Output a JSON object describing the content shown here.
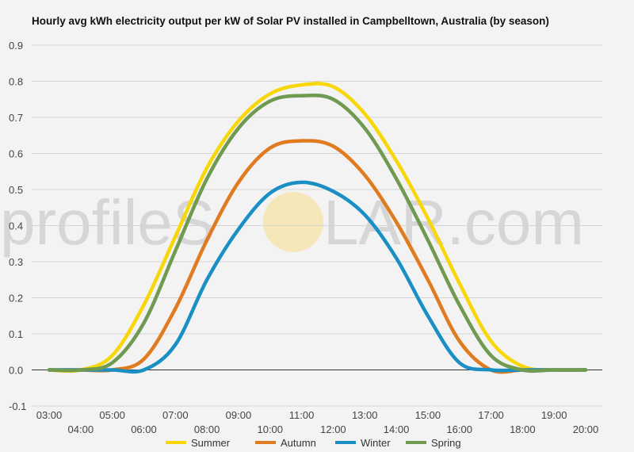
{
  "title": "Hourly avg kWh electricity output per kW of Solar PV installed in Campbelltown, Australia (by season)",
  "watermark": {
    "text_left": "profileS",
    "text_right": "LAR.com",
    "color": "#d6d6d6",
    "sun_color": "#f5e3a8"
  },
  "chart_data": {
    "type": "line",
    "title": "Hourly avg kWh electricity output per kW of Solar PV installed in Campbelltown, Australia (by season)",
    "xlabel": "",
    "ylabel": "",
    "x": [
      "03:00",
      "04:00",
      "05:00",
      "06:00",
      "07:00",
      "08:00",
      "09:00",
      "10:00",
      "11:00",
      "12:00",
      "13:00",
      "14:00",
      "15:00",
      "16:00",
      "17:00",
      "18:00",
      "19:00",
      "20:00"
    ],
    "x_tick_labels_upper": [
      "03:00",
      "05:00",
      "07:00",
      "09:00",
      "11:00",
      "13:00",
      "15:00",
      "17:00",
      "19:00"
    ],
    "x_tick_labels_lower": [
      "04:00",
      "06:00",
      "08:00",
      "10:00",
      "12:00",
      "14:00",
      "16:00",
      "18:00",
      "20:00"
    ],
    "ylim": [
      -0.1,
      0.9
    ],
    "yticks": [
      "-0.1",
      "0.0",
      "0.1",
      "0.2",
      "0.3",
      "0.4",
      "0.5",
      "0.6",
      "0.7",
      "0.8",
      "0.9"
    ],
    "grid": true,
    "legend_position": "bottom",
    "series": [
      {
        "name": "Summer",
        "color": "#f7d708",
        "values": [
          0.0,
          0.0,
          0.04,
          0.18,
          0.37,
          0.56,
          0.69,
          0.765,
          0.79,
          0.785,
          0.71,
          0.58,
          0.42,
          0.24,
          0.08,
          0.01,
          0.0,
          0.0
        ]
      },
      {
        "name": "Autumn",
        "color": "#e07b20",
        "values": [
          0.0,
          0.0,
          0.0,
          0.03,
          0.17,
          0.36,
          0.52,
          0.615,
          0.635,
          0.62,
          0.54,
          0.41,
          0.25,
          0.08,
          0.0,
          0.0,
          0.0,
          0.0
        ]
      },
      {
        "name": "Winter",
        "color": "#1a8fc4",
        "values": [
          0.0,
          0.0,
          0.0,
          0.0,
          0.07,
          0.25,
          0.39,
          0.49,
          0.52,
          0.495,
          0.43,
          0.31,
          0.15,
          0.02,
          0.0,
          0.0,
          0.0,
          0.0
        ]
      },
      {
        "name": "Spring",
        "color": "#6f9a50",
        "values": [
          0.0,
          0.0,
          0.02,
          0.13,
          0.33,
          0.53,
          0.67,
          0.745,
          0.76,
          0.75,
          0.67,
          0.53,
          0.36,
          0.18,
          0.04,
          0.0,
          0.0,
          0.0
        ]
      }
    ]
  }
}
